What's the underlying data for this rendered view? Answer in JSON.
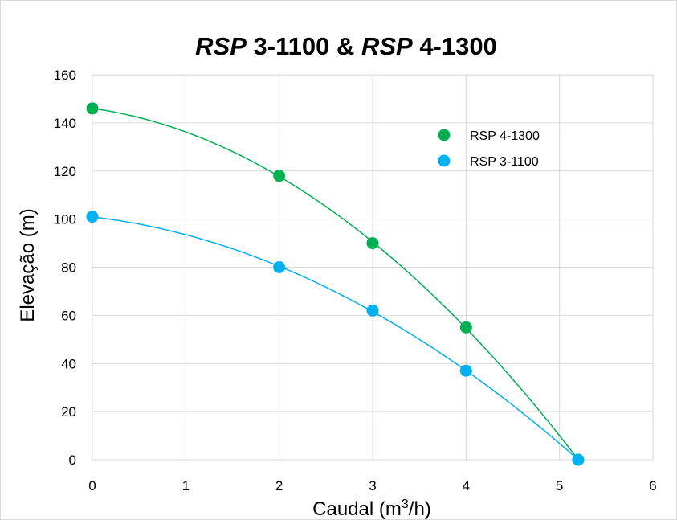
{
  "chart_data": {
    "type": "scatter",
    "title": {
      "part1_italic": "RSP",
      "part2": " 3-1100 & ",
      "part3_italic": "RSP",
      "part4": " 4-1300"
    },
    "xlabel": {
      "main": "Caudal (m",
      "sup": "3",
      "tail": "/h)"
    },
    "ylabel": "Elevação (m)",
    "xlim": [
      0,
      6
    ],
    "ylim": [
      0,
      160
    ],
    "x_ticks": [
      0,
      1,
      2,
      3,
      4,
      5,
      6
    ],
    "y_ticks": [
      0,
      20,
      40,
      60,
      80,
      100,
      120,
      140,
      160
    ],
    "grid": true,
    "legend_position": "top-right",
    "series": [
      {
        "name": "RSP 4-1300",
        "color": "#00b050",
        "x": [
          0,
          2,
          3,
          4,
          5.2
        ],
        "y": [
          146,
          118,
          90,
          55,
          0
        ]
      },
      {
        "name": "RSP 3-1100",
        "color": "#00b0f0",
        "x": [
          0,
          2,
          3,
          4,
          5.2
        ],
        "y": [
          101,
          80,
          62,
          37,
          0
        ]
      }
    ]
  }
}
